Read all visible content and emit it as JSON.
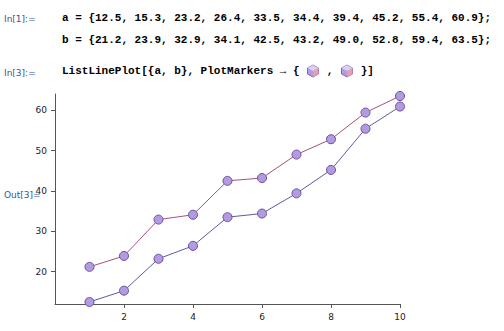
{
  "chart_data": {
    "type": "line",
    "x": [
      1,
      2,
      3,
      4,
      5,
      6,
      7,
      8,
      9,
      10
    ],
    "series": [
      {
        "name": "a",
        "color": "#5b5ba8",
        "values": [
          12.5,
          15.3,
          23.2,
          26.4,
          33.5,
          34.4,
          39.4,
          45.2,
          55.4,
          60.9
        ]
      },
      {
        "name": "b",
        "color": "#a8507a",
        "values": [
          21.2,
          23.9,
          32.9,
          34.1,
          42.5,
          43.2,
          49.0,
          52.8,
          59.4,
          63.5
        ]
      }
    ],
    "marker": "circle",
    "xlim": [
      0,
      10
    ],
    "xticks": [
      2,
      4,
      6,
      8,
      10
    ],
    "ylim": [
      12,
      64
    ],
    "yticks": [
      20,
      30,
      40,
      50,
      60
    ],
    "grid": false
  },
  "notebook": {
    "input1": {
      "label": "In[1]:=",
      "lines": [
        "a = {12.5, 15.3, 23.2, 26.4, 33.5, 34.4, 39.4, 45.2, 55.4, 60.9};",
        "b = {21.2, 23.9, 32.9, 34.1, 42.5, 43.2, 49.0, 52.8, 59.4, 63.5};"
      ]
    },
    "input3": {
      "label": "In[3]:=",
      "before": "ListLinePlot[{a, b}, PlotMarkers → { ",
      "between": " , ",
      "after": " }]"
    },
    "output3": {
      "label": "Out[3]="
    }
  }
}
